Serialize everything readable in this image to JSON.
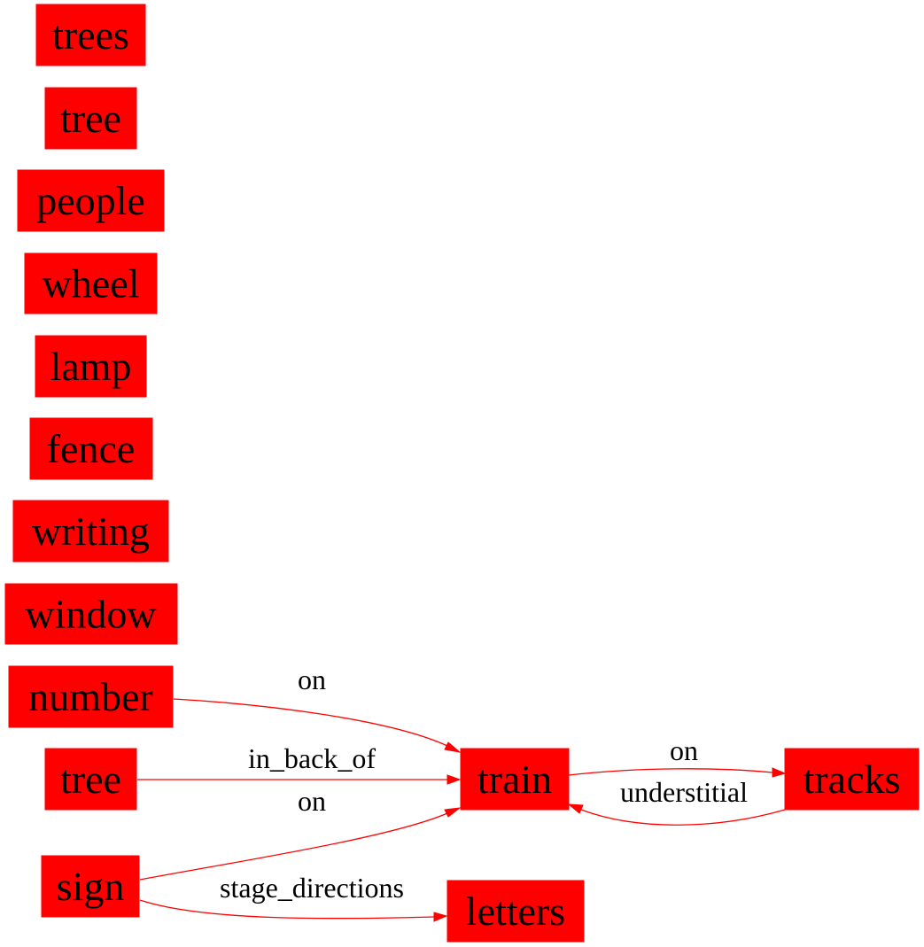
{
  "colors": {
    "node_fill": "#ff0000",
    "edge": "#ff0000",
    "text": "#000000"
  },
  "nodes": {
    "trees": "trees",
    "tree_1": "tree",
    "people": "people",
    "wheel": "wheel",
    "lamp": "lamp",
    "fence": "fence",
    "writing": "writing",
    "window": "window",
    "number": "number",
    "tree_2": "tree",
    "sign": "sign",
    "train": "train",
    "tracks": "tracks",
    "letters": "letters"
  },
  "edges": {
    "number_train": {
      "from": "number",
      "to": "train",
      "label": "on"
    },
    "tree_train": {
      "from": "tree",
      "to": "train",
      "label": "in_back_of"
    },
    "sign_train": {
      "from": "sign",
      "to": "train",
      "label": "on"
    },
    "sign_letters": {
      "from": "sign",
      "to": "letters",
      "label": "stage_directions"
    },
    "train_tracks": {
      "from": "train",
      "to": "tracks",
      "label": "on"
    },
    "tracks_train": {
      "from": "tracks",
      "to": "train",
      "label": "understitial"
    }
  }
}
